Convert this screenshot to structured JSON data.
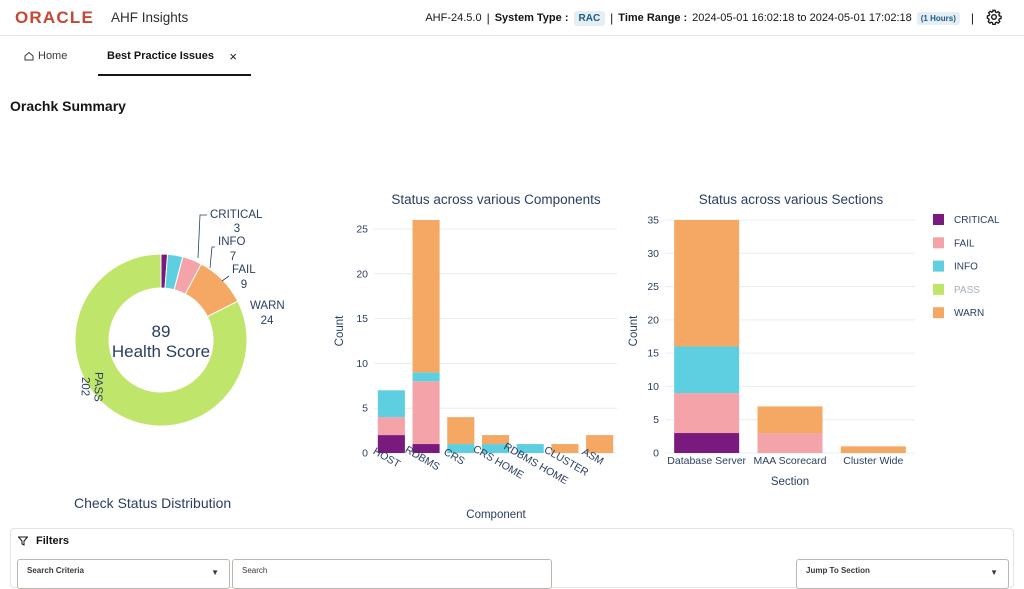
{
  "header": {
    "brand": "ORACLE",
    "app_title": "AHF Insights",
    "version": "AHF-24.5.0",
    "system_type_label": "System Type :",
    "system_type_value": "RAC",
    "time_range_label": "Time Range :",
    "time_range_value": "2024-05-01 16:02:18 to 2024-05-01 17:02:18",
    "time_range_badge": "(1 Hours)",
    "separator": "|",
    "settings_icon": "gear-icon"
  },
  "tabs": [
    {
      "label": "Home",
      "icon": "home-icon",
      "active": false
    },
    {
      "label": "Best Practice Issues",
      "active": true,
      "close": "×"
    }
  ],
  "summary_title": "Orachk Summary",
  "colors": {
    "critical": "#7a1a7e",
    "fail": "#f4a3a8",
    "info": "#5ecfe0",
    "pass": "#bfe66b",
    "warn": "#f5a864",
    "axis_text": "#2a3f5f",
    "grid": "#e8ecf2"
  },
  "chart_data": [
    {
      "type": "pie",
      "style": "donut",
      "center_value": "89",
      "center_label": "Health Score",
      "slices": [
        {
          "label": "CRITICAL",
          "value": 3
        },
        {
          "label": "INFO",
          "value": 7
        },
        {
          "label": "FAIL",
          "value": 9
        },
        {
          "label": "WARN",
          "value": 24
        },
        {
          "label": "PASS",
          "value": 202
        }
      ]
    },
    {
      "type": "bar",
      "stacked": true,
      "title": "Status across various Components",
      "xlabel": "Component",
      "ylabel": "Count",
      "ylim": [
        0,
        26
      ],
      "yticks": [
        0,
        5,
        10,
        15,
        20,
        25
      ],
      "categories": [
        "HOST",
        "RDBMS",
        "CRS",
        "CRS HOME",
        "RDBMS HOME",
        "CLUSTER",
        "ASM"
      ],
      "series": [
        {
          "name": "CRITICAL",
          "values": [
            2,
            1,
            0,
            0,
            0,
            0,
            0
          ]
        },
        {
          "name": "FAIL",
          "values": [
            2,
            7,
            0,
            0,
            0,
            0,
            0
          ]
        },
        {
          "name": "INFO",
          "values": [
            3,
            1,
            1,
            1,
            1,
            0,
            0
          ]
        },
        {
          "name": "PASS",
          "values": [
            0,
            0,
            0,
            0,
            0,
            0,
            0
          ]
        },
        {
          "name": "WARN",
          "values": [
            0,
            17,
            3,
            1,
            0,
            1,
            2
          ]
        }
      ]
    },
    {
      "type": "bar",
      "stacked": true,
      "title": "Status across various Sections",
      "xlabel": "Section",
      "ylabel": "Count",
      "ylim": [
        0,
        35
      ],
      "yticks": [
        0,
        5,
        10,
        15,
        20,
        25,
        30,
        35
      ],
      "categories": [
        "Database Server",
        "MAA Scorecard",
        "Cluster Wide"
      ],
      "series": [
        {
          "name": "CRITICAL",
          "values": [
            3,
            0,
            0
          ]
        },
        {
          "name": "FAIL",
          "values": [
            6,
            3,
            0
          ]
        },
        {
          "name": "INFO",
          "values": [
            7,
            0,
            0
          ]
        },
        {
          "name": "PASS",
          "values": [
            0,
            0,
            0
          ]
        },
        {
          "name": "WARN",
          "values": [
            19,
            4,
            1
          ]
        }
      ],
      "legend": [
        "CRITICAL",
        "FAIL",
        "INFO",
        "PASS",
        "WARN"
      ],
      "legend_placement": "right"
    }
  ],
  "distribution_title": "Check Status Distribution",
  "filters": {
    "title": "Filters",
    "icon": "filter-icon",
    "search_criteria_label": "Search Criteria",
    "search_label": "Search",
    "jump_label": "Jump To Section"
  }
}
